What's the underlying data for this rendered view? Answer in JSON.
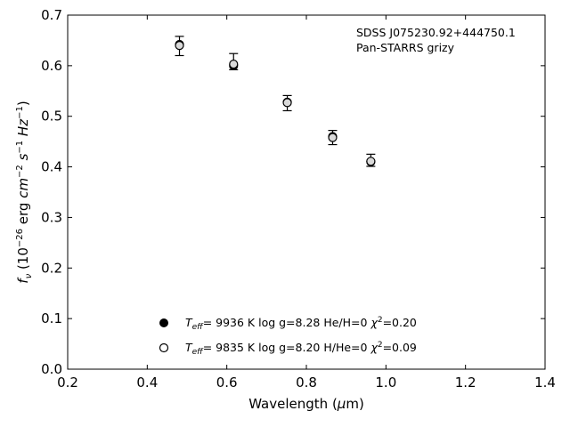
{
  "chart_data": {
    "type": "scatter",
    "xlabel": "Wavelength (μm)",
    "ylabel": "f_ν (10^-26 erg cm^-2 s^-1 Hz^-1)",
    "xlim": [
      0.2,
      1.4
    ],
    "ylim": [
      0.0,
      0.7
    ],
    "xticks": [
      "0.2",
      "0.4",
      "0.6",
      "0.8",
      "1.0",
      "1.2",
      "1.4"
    ],
    "yticks": [
      "0.0",
      "0.1",
      "0.2",
      "0.3",
      "0.4",
      "0.5",
      "0.6",
      "0.7"
    ],
    "grid": false,
    "annotation": [
      "SDSS J075230.92+444750.1",
      "Pan-STARRS grizy"
    ],
    "observed": {
      "x": [
        0.481,
        0.617,
        0.752,
        0.866,
        0.962
      ],
      "y": [
        0.64,
        0.607,
        0.526,
        0.459,
        0.413
      ],
      "yerr_low": [
        0.02,
        0.015,
        0.015,
        0.015,
        0.012
      ],
      "yerr_high": [
        0.018,
        0.017,
        0.015,
        0.013,
        0.012
      ]
    },
    "series": [
      {
        "marker": "filled",
        "label": "T_eff=  9936 K  log g=8.28  He/H=0  χ²=0.20",
        "x": [
          0.481,
          0.617,
          0.752,
          0.866,
          0.962
        ],
        "y": [
          0.642,
          0.6,
          0.528,
          0.46,
          0.41
        ]
      },
      {
        "marker": "open",
        "label": "T_eff=  9835 K  log g=8.20  H/He=0  χ²=0.09",
        "x": [
          0.481,
          0.617,
          0.752,
          0.866,
          0.962
        ],
        "y": [
          0.64,
          0.603,
          0.527,
          0.458,
          0.411
        ]
      }
    ],
    "legend_position": "lower-center"
  }
}
